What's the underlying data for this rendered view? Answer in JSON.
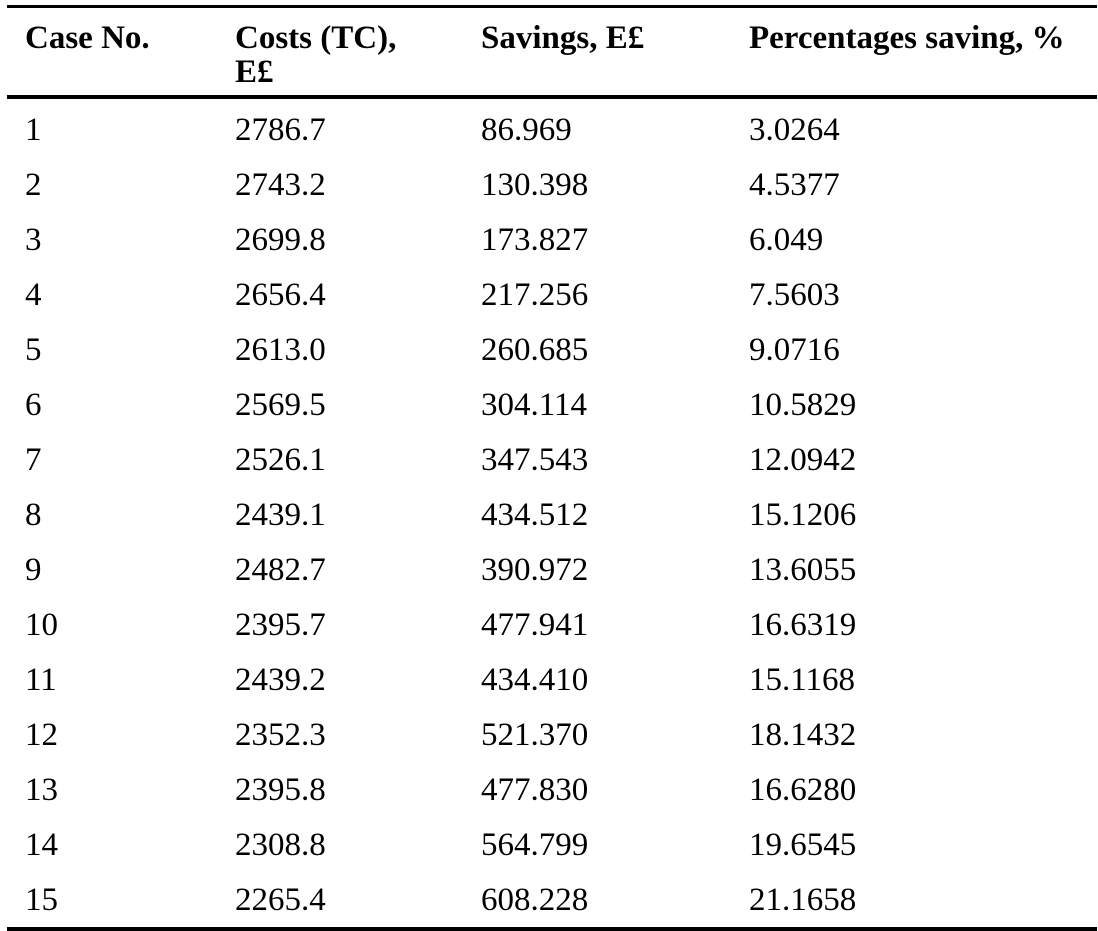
{
  "table": {
    "headers": [
      [
        "Case No."
      ],
      [
        "Costs (TC),",
        "E£"
      ],
      [
        "Savings, E£"
      ],
      [
        "Percentages saving, %"
      ]
    ],
    "rows": [
      [
        "1",
        "2786.7",
        "86.969",
        "3.0264"
      ],
      [
        "2",
        "2743.2",
        "130.398",
        "4.5377"
      ],
      [
        "3",
        "2699.8",
        "173.827",
        "6.049"
      ],
      [
        "4",
        "2656.4",
        "217.256",
        "7.5603"
      ],
      [
        "5",
        "2613.0",
        "260.685",
        "9.0716"
      ],
      [
        "6",
        "2569.5",
        "304.114",
        "10.5829"
      ],
      [
        "7",
        "2526.1",
        "347.543",
        "12.0942"
      ],
      [
        "8",
        "2439.1",
        "434.512",
        "15.1206"
      ],
      [
        "9",
        "2482.7",
        "390.972",
        "13.6055"
      ],
      [
        "10",
        "2395.7",
        "477.941",
        "16.6319"
      ],
      [
        "11",
        "2439.2",
        "434.410",
        "15.1168"
      ],
      [
        "12",
        "2352.3",
        "521.370",
        "18.1432"
      ],
      [
        "13",
        "2395.8",
        "477.830",
        "16.6280"
      ],
      [
        "14",
        "2308.8",
        "564.799",
        "19.6545"
      ],
      [
        "15",
        "2265.4",
        "608.228",
        "21.1658"
      ]
    ]
  }
}
